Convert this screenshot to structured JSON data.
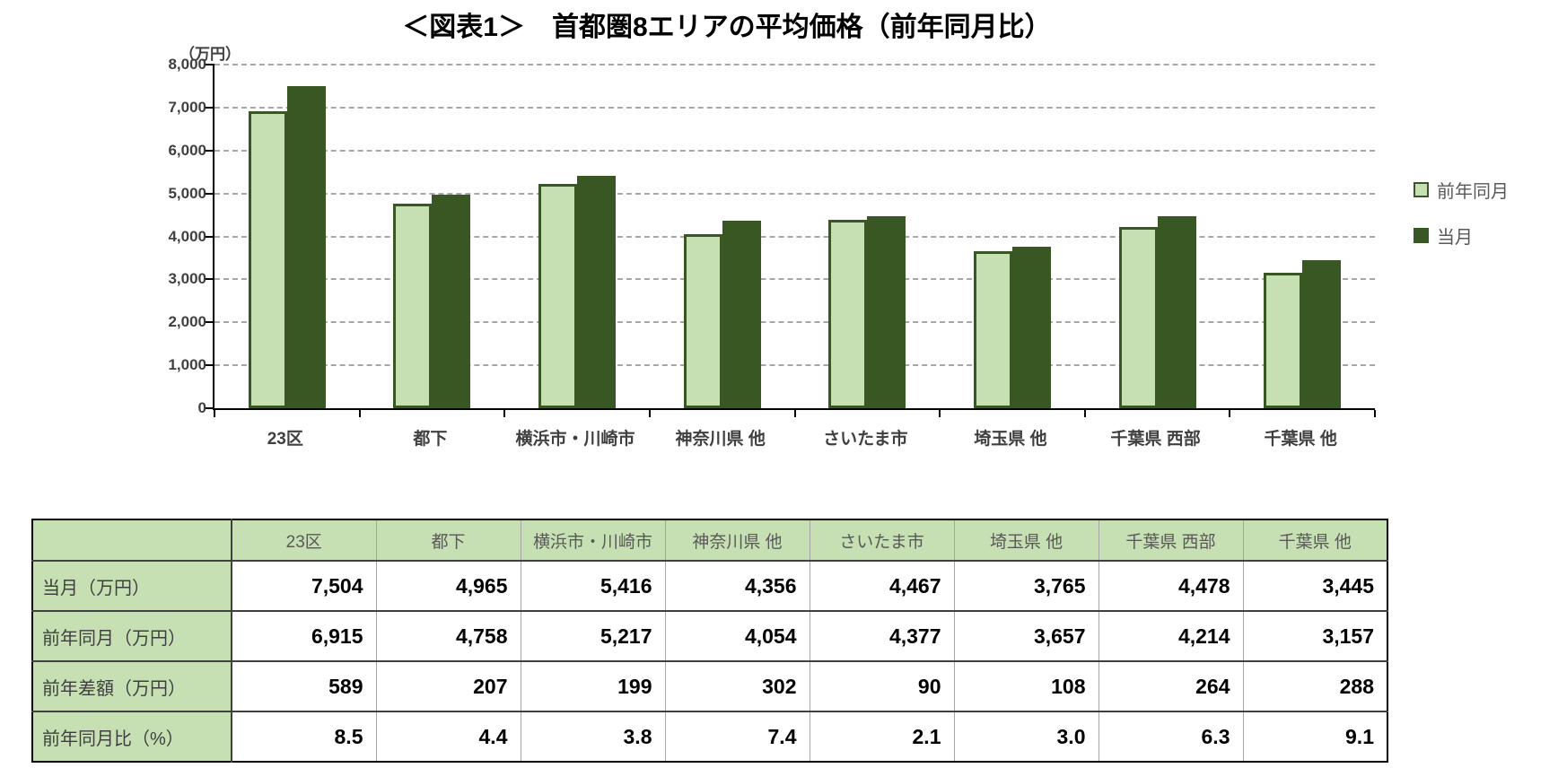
{
  "chart_data": {
    "type": "bar",
    "title": "＜図表1＞　首都圏8エリアの平均価格（前年同月比）",
    "unit_label": "（万円）",
    "categories": [
      "23区",
      "都下",
      "横浜市・川崎市",
      "神奈川県 他",
      "さいたま市",
      "埼玉県 他",
      "千葉県 西部",
      "千葉県 他"
    ],
    "series": [
      {
        "key": "prev-year-month",
        "name": "前年同月",
        "fill": "#c6e0b4",
        "border": "#385723",
        "values": [
          6915,
          4758,
          5217,
          4054,
          4377,
          3657,
          4214,
          3157
        ]
      },
      {
        "key": "current-month",
        "name": "当月",
        "fill": "#385723",
        "border": "#385723",
        "values": [
          7504,
          4965,
          5416,
          4356,
          4467,
          3765,
          4478,
          3445
        ]
      }
    ],
    "ylim": [
      0,
      8000
    ],
    "ytick_step": 1000,
    "grid": {
      "style": "dashed",
      "color": "#a6a6a6"
    },
    "axis_color": "#000000",
    "tick_label_color": "#404040",
    "legend": {
      "position": "right",
      "text_color": "#595959"
    }
  },
  "table": {
    "header_bg": "#c6e0b4",
    "columns": [
      "23区",
      "都下",
      "横浜市・川崎市",
      "神奈川県 他",
      "さいたま市",
      "埼玉県 他",
      "千葉県 西部",
      "千葉県 他"
    ],
    "rows": [
      {
        "label": "当月（万円）",
        "values": [
          "7,504",
          "4,965",
          "5,416",
          "4,356",
          "4,467",
          "3,765",
          "4,478",
          "3,445"
        ]
      },
      {
        "label": "前年同月（万円）",
        "values": [
          "6,915",
          "4,758",
          "5,217",
          "4,054",
          "4,377",
          "3,657",
          "4,214",
          "3,157"
        ]
      },
      {
        "label": "前年差額（万円）",
        "values": [
          "589",
          "207",
          "199",
          "302",
          "90",
          "108",
          "264",
          "288"
        ]
      },
      {
        "label": "前年同月比（%）",
        "values": [
          "8.5",
          "4.4",
          "3.8",
          "7.4",
          "2.1",
          "3.0",
          "6.3",
          "9.1"
        ]
      }
    ]
  }
}
